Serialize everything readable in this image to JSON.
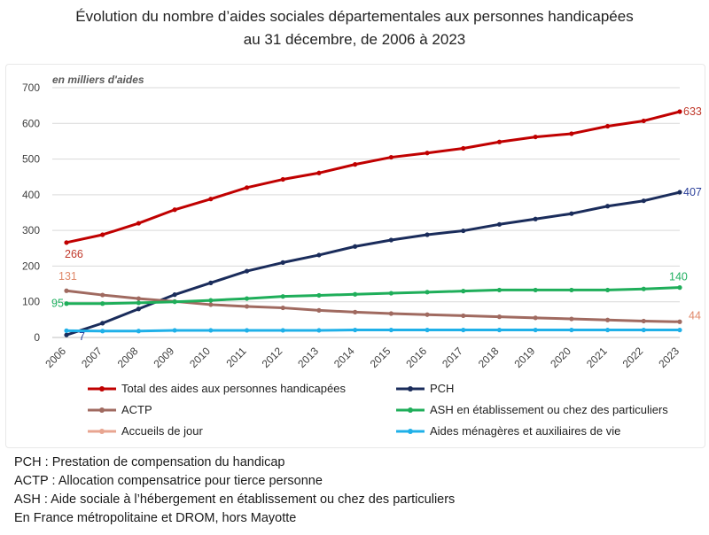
{
  "title": {
    "line1": "Évolution du nombre d’aides sociales départementales aux personnes handicapées",
    "line2": "au 31 décembre, de 2006 à 2023"
  },
  "notes": [
    "PCH : Prestation de compensation du handicap",
    "ACTP : Allocation compensatrice pour tierce personne",
    "ASH : Aide sociale à l’hébergement en établissement ou chez des particuliers",
    "En France métropolitaine et DROM, hors Mayotte"
  ],
  "chart_data": {
    "type": "line",
    "unit_note": "en milliers d'aides",
    "ylim": [
      0,
      700
    ],
    "yticks": [
      0,
      100,
      200,
      300,
      400,
      500,
      600,
      700
    ],
    "grid": true,
    "legend_position": "bottom",
    "x": [
      "2006",
      "2007",
      "2008",
      "2009",
      "2010",
      "2011",
      "2012",
      "2013",
      "2014",
      "2015",
      "2016",
      "2017",
      "2018",
      "2019",
      "2020",
      "2021",
      "2022",
      "2023"
    ],
    "series": [
      {
        "name": "Total des aides aux personnes handicapées",
        "color": "#c00000",
        "values": [
          266,
          288,
          320,
          358,
          388,
          420,
          443,
          461,
          485,
          505,
          517,
          530,
          548,
          562,
          571,
          592,
          607,
          633
        ],
        "first_label": "266",
        "last_label": "633",
        "first_label_color": "#c0392b",
        "last_label_color": "#c0392b"
      },
      {
        "name": "PCH",
        "color": "#1a2c5b",
        "values": [
          7,
          40,
          80,
          120,
          153,
          186,
          210,
          231,
          255,
          273,
          288,
          299,
          317,
          332,
          347,
          368,
          383,
          407
        ],
        "first_label": "7",
        "last_label": "407",
        "first_label_color": "#2a3f9a",
        "last_label_color": "#2a3f9a"
      },
      {
        "name": "ACTP",
        "color": "#a06a60",
        "values": [
          131,
          119,
          109,
          101,
          92,
          87,
          83,
          76,
          71,
          67,
          64,
          61,
          58,
          55,
          52,
          49,
          46,
          44
        ],
        "first_label": "131",
        "last_label": "44",
        "first_label_color": "#e0896a",
        "last_label_color": "#e0896a"
      },
      {
        "name": "ASH en établissement ou chez des particuliers",
        "color": "#1fae5a",
        "values": [
          95,
          95,
          97,
          100,
          104,
          109,
          115,
          118,
          121,
          124,
          127,
          130,
          133,
          133,
          133,
          133,
          136,
          140
        ],
        "first_label": "95",
        "last_label": "140",
        "first_label_color": "#20b060",
        "last_label_color": "#20b060"
      },
      {
        "name": "Accueils de jour",
        "color": "#e8a590",
        "values": [
          null,
          null,
          null,
          null,
          null,
          null,
          null,
          null,
          null,
          null,
          null,
          null,
          null,
          null,
          null,
          null,
          null,
          null
        ]
      },
      {
        "name": "Aides ménagères et auxiliaires de vie",
        "color": "#1fb0e8",
        "values": [
          19,
          18,
          18,
          20,
          20,
          20,
          20,
          20,
          21,
          21,
          21,
          21,
          21,
          21,
          21,
          21,
          21,
          21
        ]
      }
    ]
  }
}
